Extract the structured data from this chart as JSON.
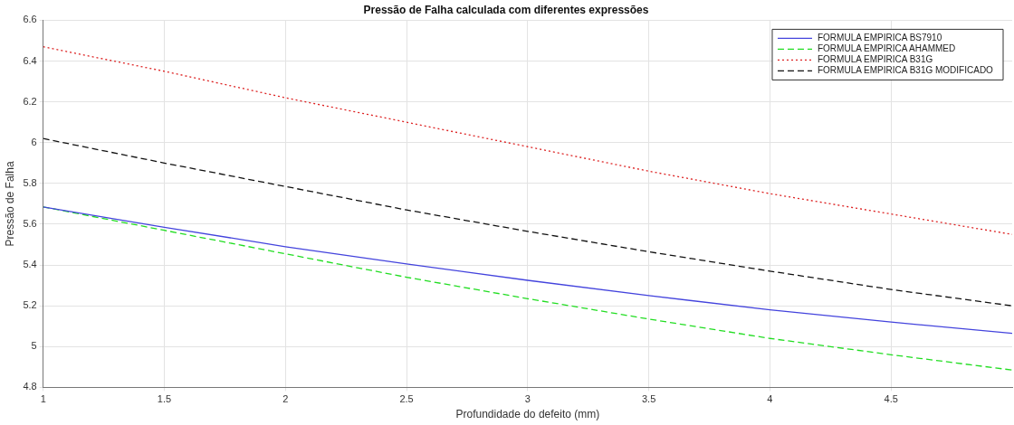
{
  "chart_data": {
    "type": "line",
    "title": "Pressão de Falha calculada com diferentes expressões",
    "xlabel": "Profundidade do defeito (mm)",
    "ylabel": "Pressão de Falha",
    "x": [
      1,
      1.5,
      2,
      2.5,
      3,
      3.5,
      4,
      4.5,
      5
    ],
    "xlim": [
      1,
      5
    ],
    "xticks": [
      1,
      1.5,
      2,
      2.5,
      3,
      3.5,
      4,
      4.5
    ],
    "ylim": [
      4.8,
      6.6
    ],
    "yticks": [
      4.8,
      5,
      5.2,
      5.4,
      5.6,
      5.8,
      6,
      6.2,
      6.4,
      6.6
    ],
    "grid": true,
    "legend": "top right",
    "marker": "none",
    "series": [
      {
        "name": "FORMULA EMPIRICA BS7910",
        "color": "#4444dd",
        "line_style": "solid",
        "values": [
          5.685,
          5.585,
          5.49,
          5.405,
          5.325,
          5.25,
          5.18,
          5.12,
          5.065
        ]
      },
      {
        "name": "FORMULA EMPIRICA AHAMMED",
        "color": "#22dd22",
        "line_style": "dashed",
        "values": [
          5.685,
          5.57,
          5.455,
          5.34,
          5.235,
          5.135,
          5.04,
          4.96,
          4.885
        ]
      },
      {
        "name": "FORMULA EMPIRICA B31G",
        "color": "#dd2222",
        "line_style": "dotted",
        "values": [
          6.47,
          6.35,
          6.22,
          6.1,
          5.98,
          5.86,
          5.75,
          5.65,
          5.55
        ]
      },
      {
        "name": "FORMULA EMPIRICA B31G MODIFICADO",
        "color": "#111111",
        "line_style": "dashed",
        "values": [
          6.02,
          5.9,
          5.785,
          5.67,
          5.565,
          5.465,
          5.37,
          5.28,
          5.2
        ]
      }
    ]
  }
}
